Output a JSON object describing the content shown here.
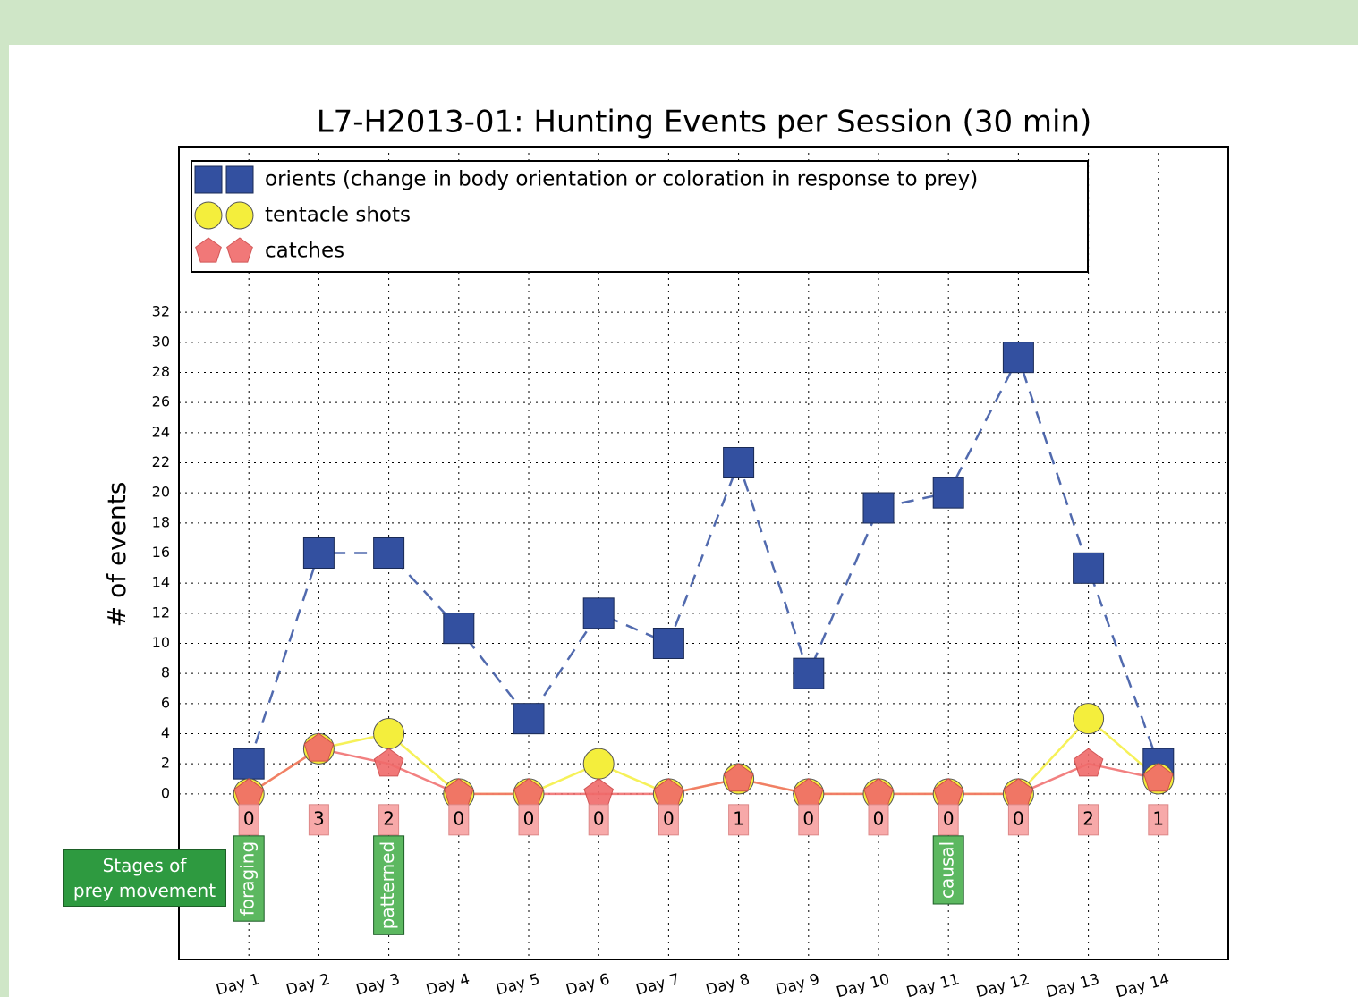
{
  "chart_data": {
    "type": "line",
    "title": "L7-H2013-01: Hunting Events per Session (30 min)",
    "ylabel": "# of events",
    "categories": [
      "Day 1",
      "Day 2",
      "Day 3",
      "Day 4",
      "Day 5",
      "Day 6",
      "Day 7",
      "Day 8",
      "Day 9",
      "Day 10",
      "Day 11",
      "Day 12",
      "Day 13",
      "Day 14"
    ],
    "series": [
      {
        "name": "orients (change in body orientation or coloration in response to prey)",
        "color": "#3350a0",
        "marker": "square",
        "linestyle": "dashed",
        "values": [
          2,
          16,
          16,
          11,
          5,
          12,
          10,
          22,
          8,
          19,
          20,
          29,
          15,
          2
        ]
      },
      {
        "name": "tentacle shots",
        "color": "#f4ee3c",
        "marker": "circle",
        "linestyle": "solid",
        "values": [
          0,
          3,
          4,
          0,
          0,
          2,
          0,
          1,
          0,
          0,
          0,
          0,
          5,
          1
        ]
      },
      {
        "name": "catches",
        "color": "#f06a6a",
        "marker": "pentagon",
        "linestyle": "solid",
        "show_labels": true,
        "values": [
          0,
          3,
          2,
          0,
          0,
          0,
          0,
          1,
          0,
          0,
          0,
          0,
          2,
          1
        ]
      }
    ],
    "ylim": [
      -11,
      43
    ],
    "yticks": [
      0,
      2,
      4,
      6,
      8,
      10,
      12,
      14,
      16,
      18,
      20,
      22,
      24,
      26,
      28,
      30,
      32
    ],
    "grid": true,
    "legend": "upper left",
    "stages": {
      "title": "Stages of\nprey movement",
      "items": [
        {
          "label": "foraging",
          "category": "Day 1"
        },
        {
          "label": "patterned",
          "category": "Day 3"
        },
        {
          "label": "causal",
          "category": "Day 11"
        }
      ]
    }
  }
}
